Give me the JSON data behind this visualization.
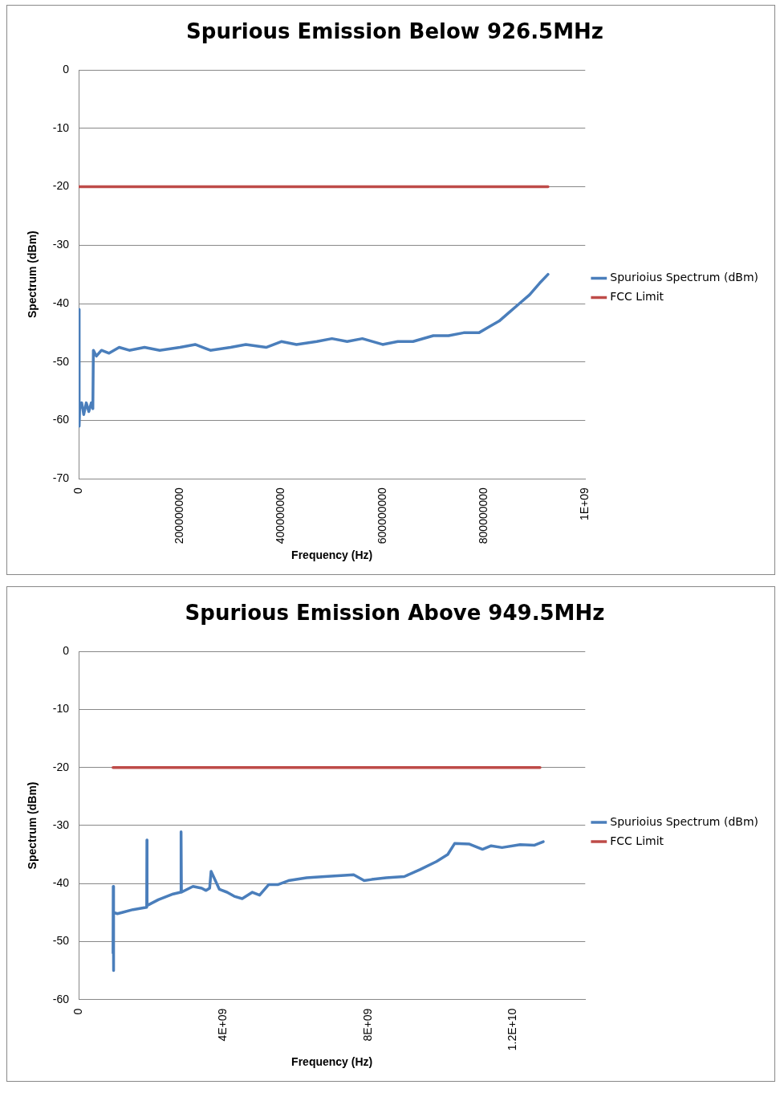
{
  "chart_data": [
    {
      "type": "line",
      "title": "Spurious Emission Below 926.5MHz",
      "xlabel": "Frequency (Hz)",
      "ylabel": "Spectrum (dBm)",
      "xlim": [
        0,
        1000000000
      ],
      "xticks": [
        0,
        200000000,
        400000000,
        600000000,
        800000000,
        {
          "value": 1000000000,
          "label": "1E+09"
        }
      ],
      "ylim": [
        -70,
        0
      ],
      "yticks": [
        -70,
        -60,
        -50,
        -40,
        -30,
        -20,
        -10,
        0
      ],
      "grid": "y",
      "legend": "right",
      "marker": "none",
      "series": [
        {
          "name": "Spurioius Spectrum (dBm)",
          "color": "#4a7ebb",
          "x": [
            0,
            1000000,
            2000000,
            6000000,
            10000000,
            15000000,
            20000000,
            25000000,
            28000000,
            29000000,
            35000000,
            45000000,
            60000000,
            80000000,
            100000000,
            130000000,
            160000000,
            200000000,
            230000000,
            260000000,
            300000000,
            330000000,
            370000000,
            400000000,
            430000000,
            470000000,
            500000000,
            530000000,
            560000000,
            600000000,
            630000000,
            660000000,
            700000000,
            730000000,
            760000000,
            790000000,
            810000000,
            830000000,
            850000000,
            870000000,
            890000000,
            910000000,
            926500000
          ],
          "values": [
            -41,
            -61,
            -58,
            -57,
            -59,
            -57,
            -58.5,
            -57,
            -58,
            -48,
            -49,
            -48,
            -48.5,
            -47.5,
            -48,
            -47.5,
            -48,
            -47.5,
            -47,
            -48,
            -47.5,
            -47,
            -47.5,
            -46.5,
            -47,
            -46.5,
            -46,
            -46.5,
            -46,
            -47,
            -46.5,
            -46.5,
            -45.5,
            -45.5,
            -45,
            -45,
            -44,
            -43,
            -41.5,
            -40,
            -38.5,
            -36.5,
            -35
          ]
        },
        {
          "name": "FCC Limit",
          "color": "#be4b48",
          "x": [
            0,
            926500000
          ],
          "values": [
            -20,
            -20
          ]
        }
      ]
    },
    {
      "type": "line",
      "title": "Spurious Emission Above 949.5MHz",
      "xlabel": "Frequency (Hz)",
      "ylabel": "Spectrum (dBm)",
      "xlim": [
        0,
        14000000000
      ],
      "xticks": [
        0,
        {
          "value": 4000000000,
          "label": "4E+09"
        },
        {
          "value": 8000000000,
          "label": "8E+09"
        },
        {
          "value": 12000000000,
          "label": "1.2E+10"
        }
      ],
      "ylim": [
        -60,
        0
      ],
      "yticks": [
        -60,
        -50,
        -40,
        -30,
        -20,
        -10,
        0
      ],
      "grid": "y",
      "legend": "right",
      "marker": "none",
      "series": [
        {
          "name": "Spurioius Spectrum (dBm)",
          "color": "#4a7ebb",
          "x": [
            949500000,
            955000000,
            960000000,
            970000000,
            1070000000,
            1200000000,
            1500000000,
            1880000000,
            1886000000,
            1890000000,
            2200000000,
            2610000000,
            2820000000,
            2830000000,
            2840000000,
            3160000000,
            3400000000,
            3520000000,
            3620000000,
            3660000000,
            3890000000,
            4100000000,
            4300000000,
            4520000000,
            4800000000,
            5000000000,
            5250000000,
            5500000000,
            5800000000,
            6300000000,
            6800000000,
            7340000000,
            7600000000,
            7890000000,
            8100000000,
            8500000000,
            9000000000,
            9430000000,
            9890000000,
            10200000000,
            10390000000,
            10800000000,
            11160000000,
            11400000000,
            11700000000,
            12200000000,
            12600000000,
            12840000000
          ],
          "values": [
            -52,
            -40.5,
            -55,
            -45,
            -45.2,
            -45,
            -44.5,
            -44.1,
            -32.5,
            -43.8,
            -42.8,
            -41.8,
            -41.5,
            -31.1,
            -41.5,
            -40.5,
            -40.8,
            -41.2,
            -40.8,
            -37.9,
            -41,
            -41.5,
            -42.2,
            -42.6,
            -41.5,
            -42,
            -40.2,
            -40.2,
            -39.5,
            -39,
            -38.8,
            -38.6,
            -38.5,
            -39.5,
            -39.3,
            -39,
            -38.8,
            -37.6,
            -36.2,
            -35,
            -33.1,
            -33.2,
            -34.1,
            -33.5,
            -33.8,
            -33.3,
            -33.4,
            -32.8
          ]
        },
        {
          "name": "FCC Limit",
          "color": "#be4b48",
          "x": [
            949500000,
            12750000000
          ],
          "values": [
            -20,
            -20
          ]
        }
      ]
    }
  ]
}
